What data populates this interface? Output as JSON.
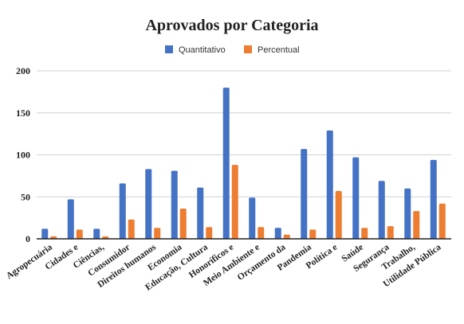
{
  "chart_data": {
    "type": "bar",
    "title": "Aprovados por Categoria",
    "xlabel": "",
    "ylabel": "",
    "ylim": [
      0,
      200
    ],
    "yticks": [
      0,
      50,
      100,
      150,
      200
    ],
    "grid": true,
    "legend_position": "top-center",
    "categories": [
      "Agropecuária",
      "Cidades e",
      "Ciências,",
      "Consumidor",
      "Direitos humanos",
      "Economia",
      "Educação, Cultura",
      "Honoríficos e",
      "Meio Ambiente e",
      "Orçamento da",
      "Pandemia",
      "Política e",
      "Saúde",
      "Segurança",
      "Trabalho,",
      "Utilidade Pública"
    ],
    "series": [
      {
        "name": "Quantitativo",
        "color": "#4472c4",
        "values": [
          12,
          47,
          12,
          66,
          83,
          81,
          61,
          180,
          49,
          13,
          107,
          129,
          97,
          69,
          60,
          94
        ]
      },
      {
        "name": "Percentual",
        "color": "#ed7d31",
        "values": [
          3,
          11,
          3,
          23,
          13,
          36,
          14,
          88,
          14,
          5,
          11,
          57,
          13,
          15,
          33,
          42
        ]
      }
    ]
  }
}
